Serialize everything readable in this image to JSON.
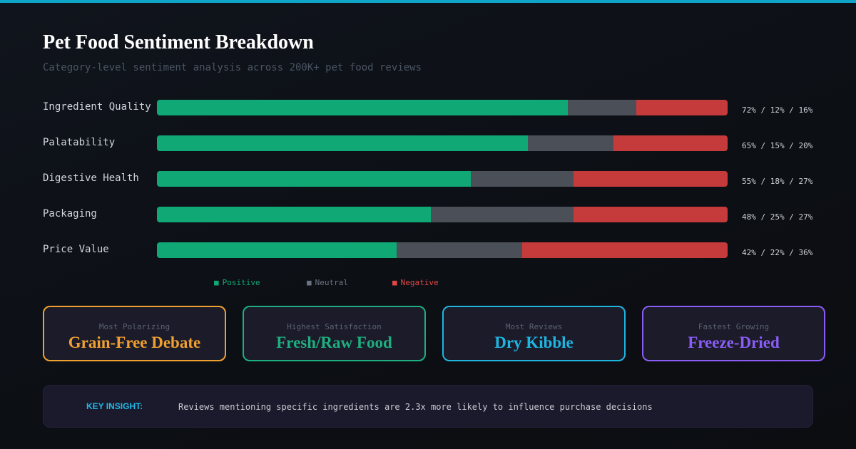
{
  "chart_data": {
    "type": "bar",
    "stacked": true,
    "orientation": "horizontal",
    "title": "Pet Food Sentiment Breakdown",
    "subtitle": "Category-level sentiment analysis across 200K+ pet food reviews",
    "categories": [
      "Ingredient Quality",
      "Palatability",
      "Digestive Health",
      "Packaging",
      "Price Value"
    ],
    "value_labels": [
      "72% / 12% / 16%",
      "65% / 15% / 20%",
      "55% / 18% / 27%",
      "48% / 25% / 27%",
      "42% / 22% / 36%"
    ],
    "series": [
      {
        "name": "Positive",
        "color": "#10a875",
        "values": [
          72,
          65,
          55,
          48,
          42
        ]
      },
      {
        "name": "Neutral",
        "color": "#4b4f58",
        "values": [
          12,
          15,
          18,
          25,
          22
        ]
      },
      {
        "name": "Negative",
        "color": "#c53a3a",
        "values": [
          16,
          20,
          27,
          27,
          36
        ]
      }
    ],
    "legend": {
      "position": "bottom",
      "items": [
        {
          "marker": "■",
          "label": "Positive",
          "color": "#10a875"
        },
        {
          "marker": "■",
          "label": "Neutral",
          "color": "#6b7280"
        },
        {
          "marker": "■",
          "label": "Negative",
          "color": "#e04848"
        }
      ]
    },
    "grid": false
  },
  "cards": [
    {
      "label": "Most Polarizing",
      "value": "Grain-Free Debate",
      "color": "#f0a030"
    },
    {
      "label": "Highest Satisfaction",
      "value": "Fresh/Raw Food",
      "color": "#1fae7f"
    },
    {
      "label": "Most Reviews",
      "value": "Dry Kibble",
      "color": "#1eb5e0"
    },
    {
      "label": "Fastest Growing",
      "value": "Freeze-Dried",
      "color": "#8b5cf6"
    }
  ],
  "insight": {
    "label": "KEY INSIGHT:",
    "text": "Reviews mentioning specific ingredients are 2.3x more likely to influence purchase decisions"
  },
  "colors": {
    "accent": "#0ea5c8"
  }
}
